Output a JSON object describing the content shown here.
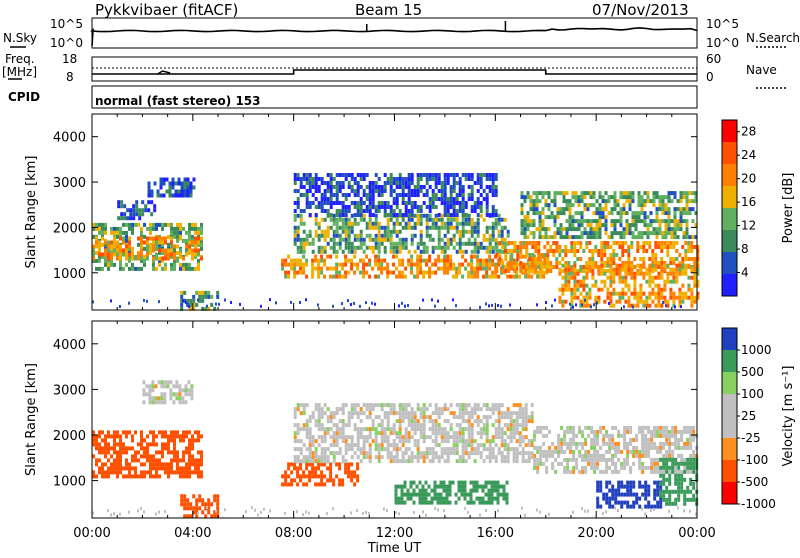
{
  "header": {
    "station": "Pykkvibaer (fitACF)",
    "beam": "Beam 15",
    "date": "07/Nov/2013"
  },
  "aux_panels": {
    "nsky_label": "N.Sky",
    "nsky_ticks": [
      "10^5",
      "10^0"
    ],
    "nsearch_label": "N.Search",
    "nsearch_ticks": [
      "10^5",
      "10^0"
    ],
    "freq_label_line1": "Freq.",
    "freq_label_line2": "[MHz]",
    "freq_ticks": [
      "18",
      "8"
    ],
    "nave_label": "Nave",
    "nave_ticks": [
      "60",
      "0"
    ],
    "cpid_label": "CPID",
    "cpid_text": "normal (fast stereo) 153"
  },
  "colors": {
    "power_scale": [
      "#1f1fff",
      "#2050c0",
      "#3a8a5a",
      "#60b060",
      "#f0b000",
      "#ff8000",
      "#ff5000",
      "#ff0000"
    ],
    "velocity_scale": [
      "#ff0000",
      "#ff5000",
      "#ff9020",
      "#c0c0c0",
      "#c0c0c0",
      "#88d060",
      "#3a9a5a",
      "#2040c0"
    ]
  },
  "chart_data": [
    {
      "type": "heatmap",
      "panel": "power",
      "ylabel": "Slant Range [km]",
      "yticks": [
        "1000",
        "2000",
        "3000",
        "4000"
      ],
      "ylim": [
        180,
        4500
      ],
      "xlim_hours": [
        0,
        24
      ],
      "colorbar_label": "Power [dB]",
      "colorbar_ticks": [
        "4",
        "8",
        "12",
        "16",
        "20",
        "24",
        "28"
      ],
      "colorbar_range": [
        0,
        30
      ],
      "regions": [
        {
          "t": [
            0.0,
            4.3
          ],
          "r": [
            1100,
            2100
          ],
          "level": "mid"
        },
        {
          "t": [
            0.0,
            4.3
          ],
          "r": [
            1300,
            1800
          ],
          "level": "high"
        },
        {
          "t": [
            2.2,
            4.0
          ],
          "r": [
            2700,
            3100
          ],
          "level": "low"
        },
        {
          "t": [
            1.0,
            2.5
          ],
          "r": [
            2200,
            2600
          ],
          "level": "low"
        },
        {
          "t": [
            3.5,
            5.0
          ],
          "r": [
            200,
            600
          ],
          "level": "mid"
        },
        {
          "t": [
            7.5,
            18.0
          ],
          "r": [
            900,
            1400
          ],
          "level": "high"
        },
        {
          "t": [
            8.0,
            16.5
          ],
          "r": [
            1500,
            2300
          ],
          "level": "mid"
        },
        {
          "t": [
            8.0,
            16.0
          ],
          "r": [
            2300,
            3200
          ],
          "level": "low"
        },
        {
          "t": [
            16.0,
            24.0
          ],
          "r": [
            1000,
            1700
          ],
          "level": "high"
        },
        {
          "t": [
            18.5,
            24.0
          ],
          "r": [
            300,
            1200
          ],
          "level": "high"
        },
        {
          "t": [
            17.0,
            24.0
          ],
          "r": [
            1800,
            2800
          ],
          "level": "mid"
        }
      ]
    },
    {
      "type": "heatmap",
      "panel": "velocity",
      "ylabel": "Slant Range [km]",
      "yticks": [
        "1000",
        "2000",
        "3000",
        "4000"
      ],
      "ylim": [
        180,
        4500
      ],
      "xlim_hours": [
        0,
        24
      ],
      "xlabel": "Time UT",
      "xticks": [
        "00:00",
        "04:00",
        "08:00",
        "12:00",
        "16:00",
        "20:00",
        "00:00"
      ],
      "colorbar_label": "Velocity [m s⁻¹]",
      "colorbar_ticks": [
        "1000",
        "500",
        "100",
        "25",
        "-25",
        "-100",
        "-500",
        "-1000"
      ],
      "regions": [
        {
          "t": [
            0.0,
            4.3
          ],
          "r": [
            1100,
            2100
          ],
          "velocity": -150
        },
        {
          "t": [
            2.0,
            4.0
          ],
          "r": [
            2700,
            3200
          ],
          "velocity": 0
        },
        {
          "t": [
            3.5,
            5.0
          ],
          "r": [
            200,
            700
          ],
          "velocity": -150
        },
        {
          "t": [
            7.5,
            10.5
          ],
          "r": [
            900,
            1400
          ],
          "velocity": -150
        },
        {
          "t": [
            8.0,
            17.5
          ],
          "r": [
            1400,
            2700
          ],
          "velocity": 0
        },
        {
          "t": [
            12.0,
            16.5
          ],
          "r": [
            500,
            1000
          ],
          "velocity": 200
        },
        {
          "t": [
            17.5,
            24.0
          ],
          "r": [
            1200,
            2200
          ],
          "velocity": 0
        },
        {
          "t": [
            20.0,
            22.5
          ],
          "r": [
            400,
            1000
          ],
          "velocity": 700
        },
        {
          "t": [
            22.5,
            24.0
          ],
          "r": [
            500,
            1500
          ],
          "velocity": 200
        }
      ]
    }
  ]
}
